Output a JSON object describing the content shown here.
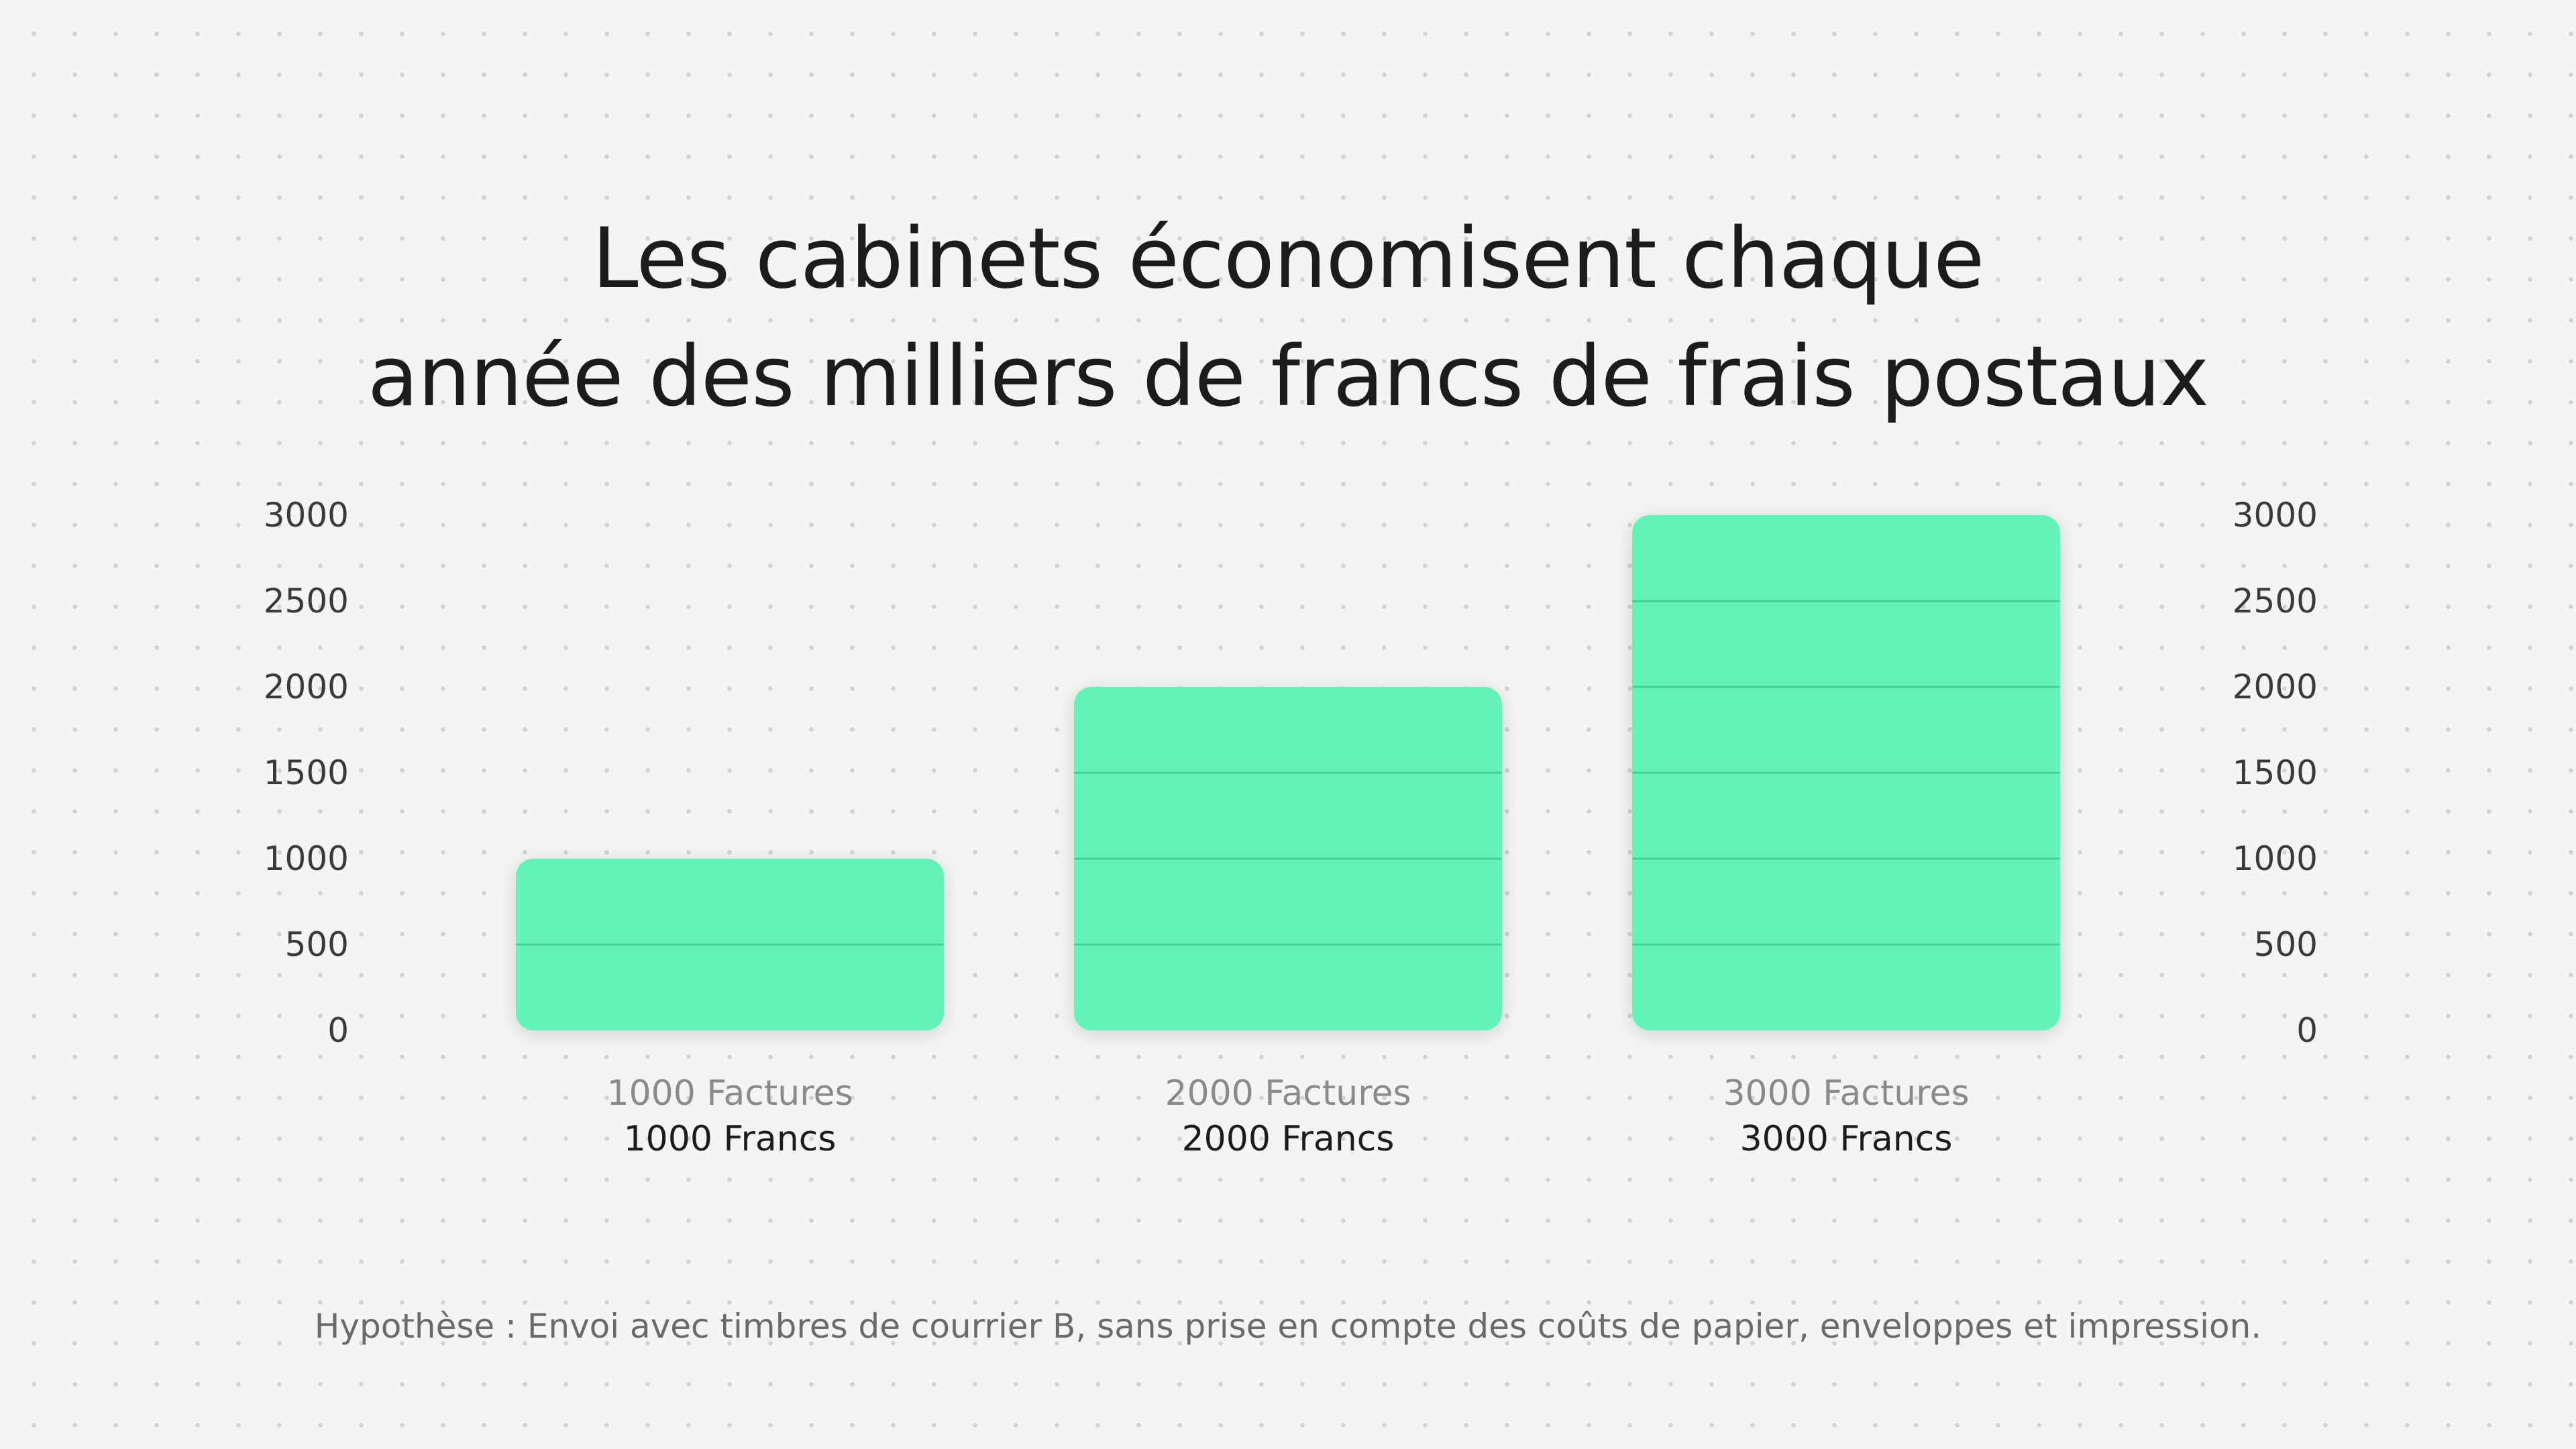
{
  "title": {
    "line1": "Les cabinets économisent chaque",
    "line2": "année des milliers de francs de frais postaux"
  },
  "footnote": "Hypothèse : Envoi avec timbres de courrier B, sans prise en compte des coûts de papier, enveloppes et impression.",
  "colors": {
    "bar": "#63f2b8",
    "bar_grid": "#3fbf8d",
    "background": "#f4f4f4"
  },
  "chart_data": {
    "type": "bar",
    "categories": [
      "1000 Factures",
      "2000 Factures",
      "3000 Factures"
    ],
    "sublabels": [
      "1000 Francs",
      "2000 Francs",
      "3000 Francs"
    ],
    "values": [
      1000,
      2000,
      3000
    ],
    "ylim": [
      0,
      3000
    ],
    "yticks": [
      0,
      500,
      1000,
      1500,
      2000,
      2500,
      3000
    ],
    "axes": "left-and-right",
    "grid": false
  }
}
